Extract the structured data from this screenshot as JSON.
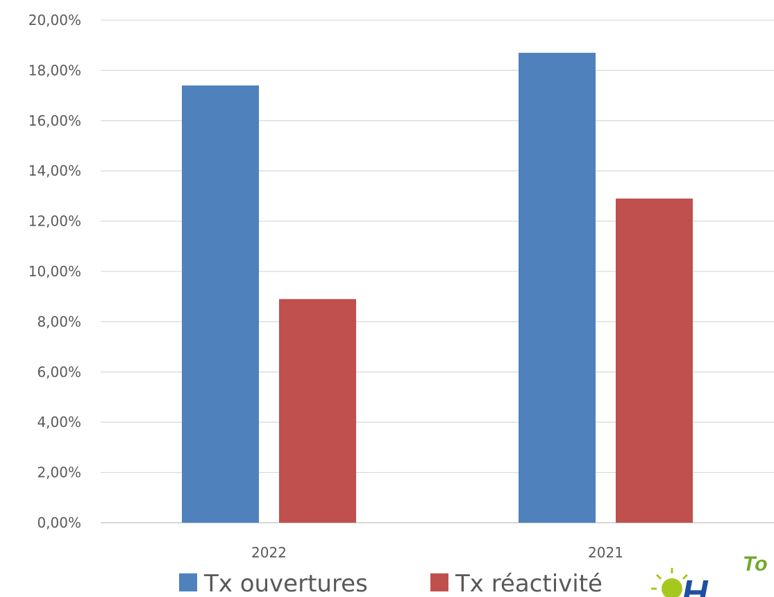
{
  "chart_data": {
    "type": "bar",
    "title": "",
    "xlabel": "",
    "ylabel": "",
    "categories": [
      "2022",
      "2021"
    ],
    "series": [
      {
        "name": "Tx ouvertures",
        "color": "#4f81bd",
        "values": [
          17.4,
          18.7
        ]
      },
      {
        "name": "Tx réactivité",
        "color": "#c0504d",
        "values": [
          8.9,
          12.9
        ]
      }
    ],
    "ylim": [
      0,
      20
    ],
    "yticks": [
      "0,00%",
      "2,00%",
      "4,00%",
      "6,00%",
      "8,00%",
      "10,00%",
      "12,00%",
      "14,00%",
      "16,00%",
      "18,00%",
      "20,00%"
    ],
    "grid": true,
    "legend_position": "bottom"
  },
  "logo": {
    "text_top": "To",
    "text_main": "H",
    "icon": "sun-logo-icon"
  }
}
